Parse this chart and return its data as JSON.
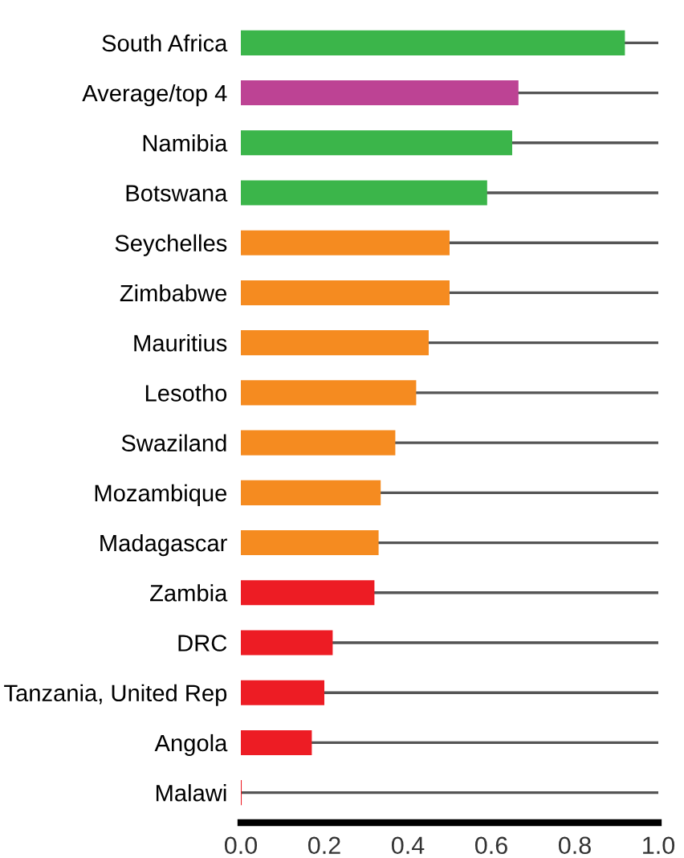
{
  "chart_data": {
    "type": "bar",
    "orientation": "horizontal",
    "categories": [
      "South Africa",
      "Average/top 4",
      "Namibia",
      "Botswana",
      "Seychelles",
      "Zimbabwe",
      "Mauritius",
      "Lesotho",
      "Swaziland",
      "Mozambique",
      "Madagascar",
      "Zambia",
      "DRC",
      "Tanzania, United Rep",
      "Angola",
      "Malawi"
    ],
    "values": [
      0.92,
      0.665,
      0.65,
      0.59,
      0.5,
      0.5,
      0.45,
      0.42,
      0.37,
      0.335,
      0.33,
      0.32,
      0.22,
      0.2,
      0.17,
      0.002
    ],
    "colors": [
      "#3bb54a",
      "#bd4394",
      "#3bb54a",
      "#3bb54a",
      "#f58b20",
      "#f58b20",
      "#f58b20",
      "#f58b20",
      "#f58b20",
      "#f58b20",
      "#f58b20",
      "#ed1c24",
      "#ed1c24",
      "#ed1c24",
      "#ed1c24",
      "#ed1c24"
    ],
    "xlim": [
      0,
      1
    ],
    "xticks": [
      {
        "value": 0,
        "label": "0.0"
      },
      {
        "value": 0.2,
        "label": "0.2"
      },
      {
        "value": 0.4,
        "label": "0.4"
      },
      {
        "value": 0.6,
        "label": "0.6"
      },
      {
        "value": 0.8,
        "label": "0.8"
      },
      {
        "value": 1,
        "label": "1.0"
      }
    ],
    "grid": "y"
  }
}
